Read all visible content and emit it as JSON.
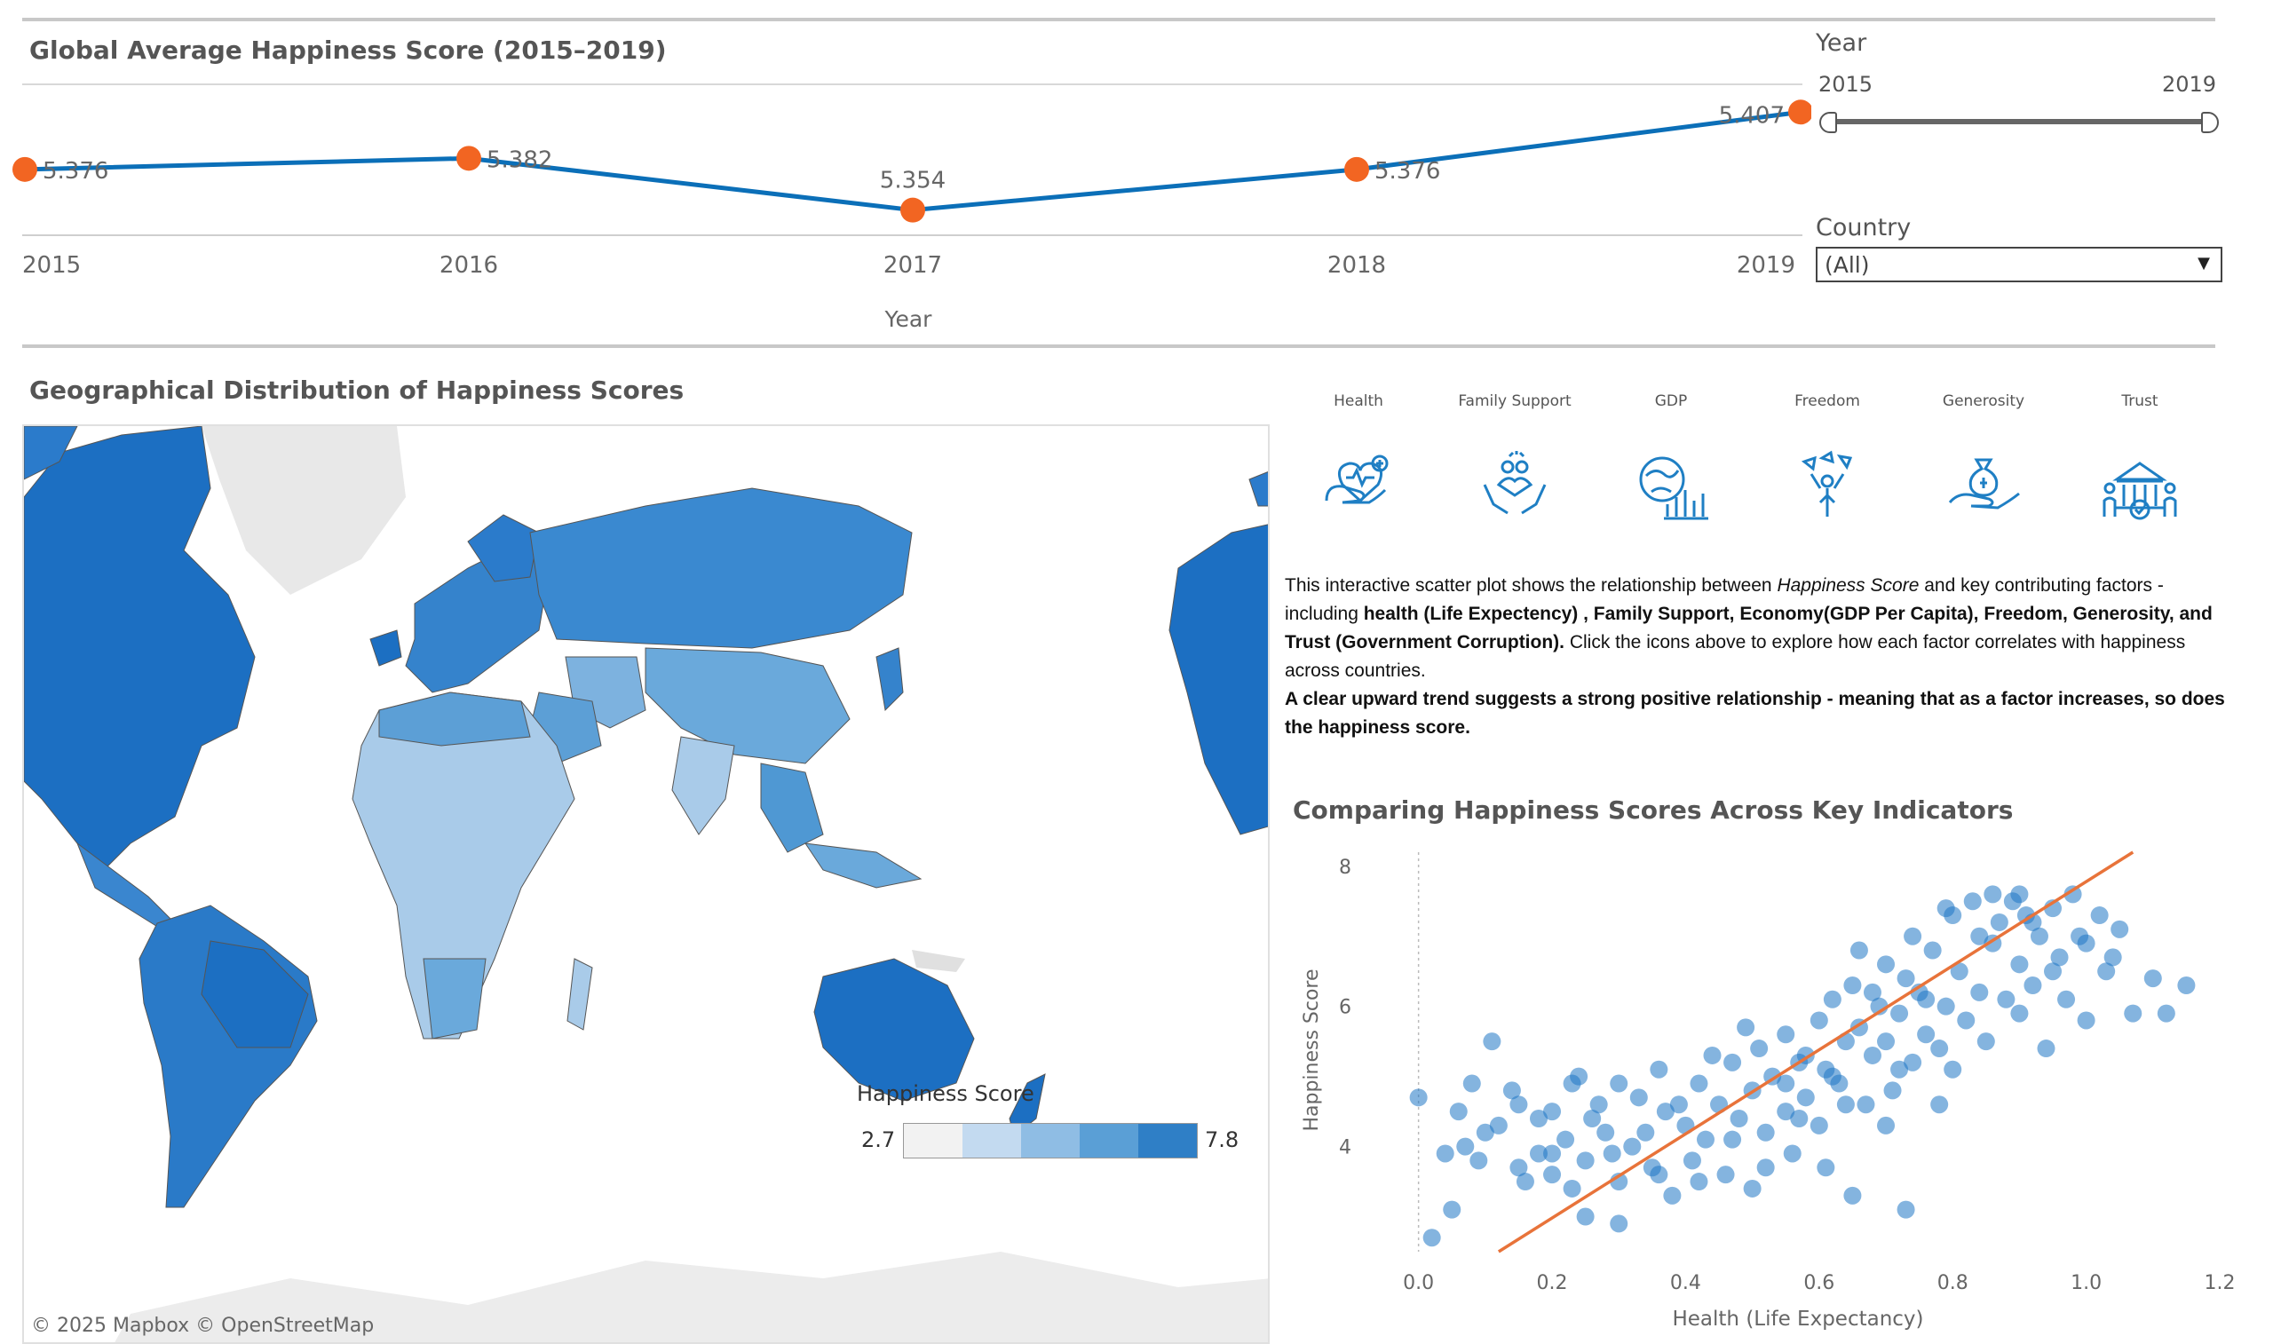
{
  "line_chart": {
    "title": "Global Average Happiness Score (2015–2019)",
    "xlabel": "Year",
    "chart_data": {
      "type": "line",
      "x": [
        2015,
        2016,
        2017,
        2018,
        2019
      ],
      "values": [
        5.376,
        5.382,
        5.354,
        5.376,
        5.407
      ],
      "labels": [
        "5.376",
        "5.382",
        "5.354",
        "5.376",
        "5.407"
      ],
      "tick_labels": [
        "2015",
        "2016",
        "2017",
        "2018",
        "2019"
      ],
      "line_color": "#0b6fb8",
      "marker_color": "#f26522"
    }
  },
  "filters": {
    "year_label": "Year",
    "year_min": "2015",
    "year_max": "2019",
    "country_label": "Country",
    "country_value": "(All)"
  },
  "map": {
    "title": "Geographical Distribution of Happiness Scores",
    "attribution": "© 2025 Mapbox  © OpenStreetMap",
    "legend_title": "Happiness Score",
    "legend_min": "2.7",
    "legend_max": "7.8",
    "legend_colors": [
      "#f2f2f2",
      "#c3daf0",
      "#8fbde4",
      "#5a9fd6",
      "#2f7fc6"
    ]
  },
  "factors": [
    {
      "label": "Health",
      "icon": "health-icon"
    },
    {
      "label": "Family Support",
      "icon": "family-support-icon"
    },
    {
      "label": "GDP",
      "icon": "gdp-icon"
    },
    {
      "label": "Freedom",
      "icon": "freedom-icon"
    },
    {
      "label": "Generosity",
      "icon": "generosity-icon"
    },
    {
      "label": "Trust",
      "icon": "trust-icon"
    }
  ],
  "description": {
    "p1_a": "This interactive scatter plot shows the relationship between ",
    "p1_em": "Happiness Score",
    "p1_b": " and key contributing factors - including ",
    "p1_bold": "health (Life Expectency) , Family Support, Economy(GDP Per Capita), Freedom, Generosity, and Trust (Government Corruption).",
    "p1_c": " Click the icons above to explore how each factor correlates with happiness across countries.",
    "p2_bold": "A clear upward trend suggests a strong positive relationship - meaning that as a factor increases, so does the happiness score."
  },
  "scatter": {
    "title": "Comparing Happiness Scores Across Key Indicators",
    "chart_data": {
      "type": "scatter",
      "xlabel": "Health (Life Expectancy)",
      "ylabel": "Happiness Score",
      "xlim": [
        -0.07,
        1.2
      ],
      "ylim": [
        2.5,
        8.2
      ],
      "x_ticks": [
        "0.0",
        "0.2",
        "0.4",
        "0.6",
        "0.8",
        "1.0",
        "1.2"
      ],
      "y_ticks": [
        "4",
        "6",
        "8"
      ],
      "point_color": "#1f77c4",
      "trend_color": "#e8733a",
      "trend_line": [
        [
          0.12,
          2.5
        ],
        [
          1.07,
          8.2
        ]
      ],
      "points": [
        [
          0.0,
          4.7
        ],
        [
          0.02,
          2.7
        ],
        [
          0.05,
          3.1
        ],
        [
          0.04,
          3.9
        ],
        [
          0.08,
          4.9
        ],
        [
          0.11,
          5.5
        ],
        [
          0.1,
          4.2
        ],
        [
          0.07,
          4.0
        ],
        [
          0.15,
          4.6
        ],
        [
          0.15,
          3.7
        ],
        [
          0.18,
          3.9
        ],
        [
          0.18,
          4.4
        ],
        [
          0.2,
          4.5
        ],
        [
          0.2,
          3.6
        ],
        [
          0.22,
          4.1
        ],
        [
          0.23,
          4.9
        ],
        [
          0.25,
          3.8
        ],
        [
          0.25,
          3.0
        ],
        [
          0.27,
          4.6
        ],
        [
          0.28,
          4.2
        ],
        [
          0.3,
          2.9
        ],
        [
          0.3,
          3.5
        ],
        [
          0.32,
          4.0
        ],
        [
          0.33,
          4.7
        ],
        [
          0.35,
          3.7
        ],
        [
          0.36,
          5.1
        ],
        [
          0.37,
          4.5
        ],
        [
          0.38,
          3.3
        ],
        [
          0.4,
          4.3
        ],
        [
          0.41,
          3.8
        ],
        [
          0.42,
          4.9
        ],
        [
          0.43,
          4.1
        ],
        [
          0.45,
          4.6
        ],
        [
          0.46,
          3.6
        ],
        [
          0.47,
          5.2
        ],
        [
          0.48,
          4.4
        ],
        [
          0.5,
          4.8
        ],
        [
          0.5,
          3.4
        ],
        [
          0.51,
          5.4
        ],
        [
          0.52,
          4.2
        ],
        [
          0.53,
          5.0
        ],
        [
          0.55,
          4.5
        ],
        [
          0.55,
          5.6
        ],
        [
          0.56,
          3.9
        ],
        [
          0.57,
          5.2
        ],
        [
          0.58,
          4.7
        ],
        [
          0.6,
          5.8
        ],
        [
          0.6,
          4.3
        ],
        [
          0.61,
          5.1
        ],
        [
          0.62,
          6.1
        ],
        [
          0.63,
          4.9
        ],
        [
          0.64,
          5.5
        ],
        [
          0.65,
          3.3
        ],
        [
          0.65,
          6.3
        ],
        [
          0.66,
          5.7
        ],
        [
          0.67,
          4.6
        ],
        [
          0.68,
          5.3
        ],
        [
          0.69,
          6.0
        ],
        [
          0.7,
          5.5
        ],
        [
          0.7,
          6.6
        ],
        [
          0.71,
          4.8
        ],
        [
          0.72,
          5.9
        ],
        [
          0.73,
          6.4
        ],
        [
          0.73,
          3.1
        ],
        [
          0.74,
          5.2
        ],
        [
          0.75,
          6.2
        ],
        [
          0.76,
          5.6
        ],
        [
          0.77,
          6.8
        ],
        [
          0.78,
          5.4
        ],
        [
          0.79,
          6.0
        ],
        [
          0.8,
          7.3
        ],
        [
          0.8,
          5.1
        ],
        [
          0.81,
          6.5
        ],
        [
          0.82,
          5.8
        ],
        [
          0.83,
          7.5
        ],
        [
          0.84,
          6.2
        ],
        [
          0.85,
          5.5
        ],
        [
          0.86,
          6.9
        ],
        [
          0.87,
          7.2
        ],
        [
          0.88,
          6.1
        ],
        [
          0.89,
          7.5
        ],
        [
          0.9,
          5.9
        ],
        [
          0.9,
          6.6
        ],
        [
          0.91,
          7.3
        ],
        [
          0.92,
          6.3
        ],
        [
          0.93,
          7.0
        ],
        [
          0.94,
          5.4
        ],
        [
          0.95,
          7.4
        ],
        [
          0.96,
          6.7
        ],
        [
          0.97,
          6.1
        ],
        [
          0.98,
          7.6
        ],
        [
          1.0,
          6.9
        ],
        [
          1.0,
          5.8
        ],
        [
          1.02,
          7.3
        ],
        [
          1.03,
          6.5
        ],
        [
          1.05,
          7.1
        ],
        [
          1.07,
          5.9
        ],
        [
          1.1,
          6.4
        ],
        [
          1.12,
          5.9
        ],
        [
          1.15,
          6.3
        ],
        [
          0.58,
          5.3
        ],
        [
          0.62,
          5.0
        ],
        [
          0.68,
          6.2
        ],
        [
          0.72,
          5.1
        ],
        [
          0.76,
          6.1
        ],
        [
          0.84,
          7.0
        ],
        [
          0.9,
          7.6
        ],
        [
          0.95,
          6.5
        ],
        [
          0.55,
          4.9
        ],
        [
          0.47,
          4.1
        ],
        [
          0.39,
          4.6
        ],
        [
          0.34,
          4.2
        ],
        [
          0.26,
          4.4
        ],
        [
          0.12,
          4.3
        ],
        [
          0.16,
          3.5
        ],
        [
          0.2,
          3.9
        ],
        [
          0.3,
          4.9
        ],
        [
          0.44,
          5.3
        ],
        [
          0.49,
          5.7
        ],
        [
          0.66,
          6.8
        ],
        [
          0.74,
          7.0
        ],
        [
          0.79,
          7.4
        ],
        [
          0.86,
          7.6
        ],
        [
          0.92,
          7.2
        ],
        [
          0.99,
          7.0
        ],
        [
          1.04,
          6.7
        ],
        [
          0.64,
          4.6
        ],
        [
          0.57,
          4.4
        ],
        [
          0.61,
          3.7
        ],
        [
          0.52,
          3.7
        ],
        [
          0.42,
          3.5
        ],
        [
          0.36,
          3.6
        ],
        [
          0.29,
          3.9
        ],
        [
          0.23,
          3.4
        ],
        [
          0.09,
          3.8
        ],
        [
          0.06,
          4.5
        ],
        [
          0.14,
          4.8
        ],
        [
          0.24,
          5.0
        ],
        [
          0.7,
          4.3
        ],
        [
          0.78,
          4.6
        ]
      ]
    }
  }
}
